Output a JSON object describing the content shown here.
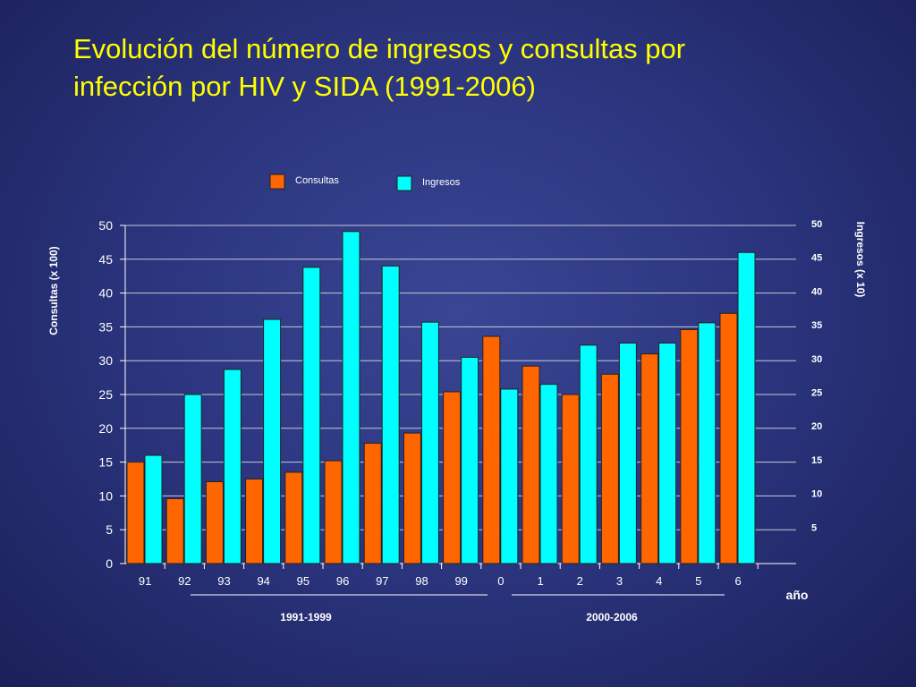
{
  "title": {
    "line1": "Evolución del número de ingresos y consultas por",
    "line2": "infección por HIV y SIDA (1991-2006)"
  },
  "colors": {
    "consultas": "#ff6600",
    "ingresos": "#00ffff",
    "text": "#ffffff",
    "title": "#ffff00"
  },
  "chart_data": {
    "type": "bar",
    "categories": [
      "91",
      "92",
      "93",
      "94",
      "95",
      "96",
      "97",
      "98",
      "99",
      "0",
      "1",
      "2",
      "3",
      "4",
      "5",
      "6"
    ],
    "series": [
      {
        "name": "Consultas",
        "axis": "left",
        "values": [
          15,
          9.6,
          12.1,
          12.5,
          13.5,
          15.2,
          17.8,
          19.3,
          25.4,
          33.6,
          29.2,
          25,
          28,
          31,
          34.6,
          37
        ]
      },
      {
        "name": "Ingresos",
        "axis": "right",
        "values": [
          16,
          25,
          28.7,
          36.1,
          43.8,
          49.1,
          44,
          35.7,
          30.5,
          25.8,
          26.5,
          32.3,
          32.6,
          32.6,
          35.6,
          46
        ]
      }
    ],
    "ylabel": "Consultas (x 100)",
    "y2label": "Ingresos (x 10)",
    "xlabel": "año",
    "ylim": [
      0,
      50
    ],
    "y2ticks": [
      "50",
      "45",
      "40",
      "35",
      "30",
      "25",
      "20",
      "15",
      "10",
      "5"
    ],
    "period_labels": [
      "1991-1999",
      "2000-2006"
    ],
    "legend": "top-center",
    "grid": true
  }
}
